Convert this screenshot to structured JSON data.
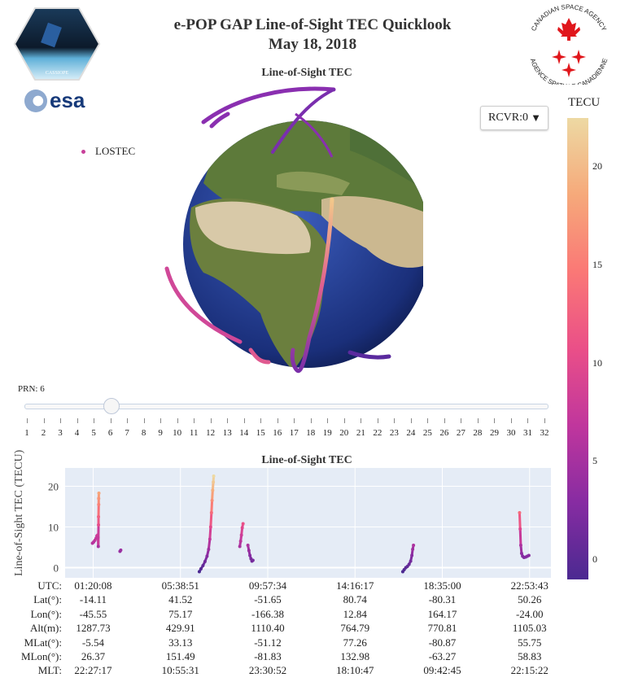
{
  "header": {
    "title": "e-POP GAP Line-of-Sight TEC Quicklook",
    "date": "May 18, 2018"
  },
  "logos": {
    "cassiope": "CASSIOPE",
    "esa": "esa",
    "csa_top": "CANADIAN SPACE AGENCY",
    "csa_bottom": "AGENCE SPATIALE CANADIENNE"
  },
  "globe": {
    "title": "Line-of-Sight TEC",
    "legend_label": "LOSTEC",
    "receiver_dropdown": {
      "selected": "RCVR:0"
    }
  },
  "colorbar": {
    "title": "TECU",
    "ticks": [
      "20",
      "15",
      "10",
      "5",
      "0"
    ],
    "range": [
      -1,
      22.5
    ],
    "colors": [
      "#4b2991",
      "#872ca2",
      "#c0369d",
      "#ea4f88",
      "#fa7876",
      "#f6a97a",
      "#edd9a3"
    ]
  },
  "prn_slider": {
    "label": "PRN: 6",
    "value": 6,
    "min": 1,
    "max": 32,
    "ticks": [
      "1",
      "2",
      "3",
      "4",
      "5",
      "6",
      "7",
      "8",
      "9",
      "10",
      "11",
      "12",
      "13",
      "14",
      "15",
      "16",
      "17",
      "18",
      "19",
      "20",
      "21",
      "22",
      "23",
      "24",
      "25",
      "26",
      "27",
      "28",
      "29",
      "30",
      "31",
      "32"
    ]
  },
  "chart_data": {
    "type": "scatter",
    "title": "Line-of-Sight TEC",
    "ylabel": "Line-of-Sight TEC (TECU)",
    "ylim": [
      -2.5,
      24.5
    ],
    "xlim_hours": [
      -0.05,
      23.95
    ],
    "yticks": [
      "0",
      "10",
      "20"
    ],
    "grid": true,
    "x_unit": "UTC hours",
    "segments": [
      {
        "x": [
          1.3,
          1.36,
          1.42,
          1.48,
          1.52,
          1.56,
          1.58,
          1.59,
          1.6,
          1.6,
          1.61,
          1.61,
          1.62
        ],
        "y": [
          6.0,
          6.3,
          6.7,
          7.2,
          7.8,
          8.0,
          7.4,
          5.2,
          10.5,
          12.5,
          15.5,
          17.0,
          18.3
        ]
      },
      {
        "x": [
          2.66,
          2.7
        ],
        "y": [
          4.0,
          4.3
        ]
      },
      {
        "x": [
          6.58,
          6.66,
          6.76,
          6.86,
          6.96,
          7.04,
          7.1,
          7.14,
          7.18,
          7.21,
          7.24,
          7.27,
          7.29
        ],
        "y": [
          -1.0,
          -0.3,
          0.5,
          1.5,
          2.8,
          4.5,
          7.0,
          10.0,
          13.5,
          16.5,
          19.0,
          21.0,
          22.5
        ]
      },
      {
        "x": [
          8.58,
          8.62,
          8.66,
          8.7,
          8.74
        ],
        "y": [
          5.2,
          6.5,
          8.0,
          9.8,
          10.8
        ]
      },
      {
        "x": [
          8.98,
          9.03,
          9.08,
          9.13,
          9.18,
          9.23
        ],
        "y": [
          5.5,
          4.2,
          3.0,
          2.2,
          1.6,
          1.8
        ]
      },
      {
        "x": [
          16.63,
          16.7,
          16.78,
          16.86,
          16.94,
          17.02,
          17.08,
          17.12,
          17.16
        ],
        "y": [
          -1.0,
          -0.5,
          0.0,
          0.3,
          0.8,
          1.6,
          3.0,
          4.5,
          5.5
        ]
      },
      {
        "x": [
          22.4,
          22.43,
          22.46,
          22.5,
          22.55,
          22.62,
          22.7,
          22.78,
          22.86
        ],
        "y": [
          13.5,
          9.5,
          5.5,
          3.5,
          2.8,
          2.5,
          2.6,
          2.8,
          3.0
        ]
      }
    ]
  },
  "table": {
    "labels": [
      "UTC:",
      "Lat(°):",
      "Lon(°):",
      "Alt(m):",
      "MLat(°):",
      "MLon(°):",
      "MLT:"
    ],
    "columns": [
      [
        "01:20:08",
        "-14.11",
        "-45.55",
        "1287.73",
        "-5.54",
        "26.37",
        "22:27:17"
      ],
      [
        "05:38:51",
        "41.52",
        "75.17",
        "429.91",
        "33.13",
        "151.49",
        "10:55:31"
      ],
      [
        "09:57:34",
        "-51.65",
        "-166.38",
        "1110.40",
        "-51.12",
        "-81.83",
        "23:30:52"
      ],
      [
        "14:16:17",
        "80.74",
        "12.84",
        "764.79",
        "77.26",
        "132.98",
        "18:10:47"
      ],
      [
        "18:35:00",
        "-80.31",
        "164.17",
        "770.81",
        "-80.87",
        "-63.27",
        "09:42:45"
      ],
      [
        "22:53:43",
        "50.26",
        "-24.00",
        "1105.03",
        "55.75",
        "58.83",
        "22:15:22"
      ]
    ]
  }
}
